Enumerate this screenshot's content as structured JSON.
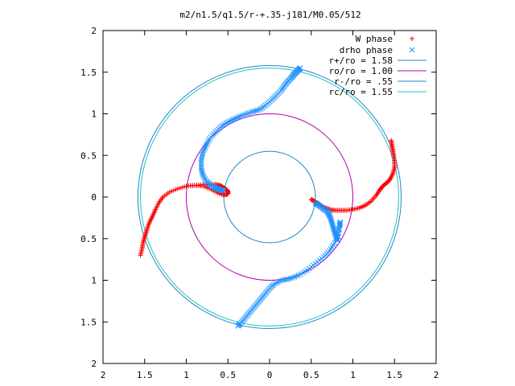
{
  "chart_data": {
    "type": "scatter",
    "title": "m2/n1.5/q1.5/r-+.35-j181/M0.05/512",
    "xlabel": "",
    "ylabel": "",
    "xlim": [
      -2,
      2
    ],
    "ylim": [
      -2,
      2
    ],
    "x_tick_labels": [
      "2",
      "1.5",
      "1",
      "0.5",
      "0",
      "0.5",
      "1",
      "1.5",
      "2"
    ],
    "y_tick_labels": [
      "2",
      "1.5",
      "1",
      "0.5",
      "0",
      "0.5",
      "1",
      "1.5",
      "2"
    ],
    "grid": false,
    "legend_position": "top-right",
    "series": [
      {
        "name": "W phase",
        "kind": "points",
        "marker": "plus",
        "color": "#ff0000",
        "arms": [
          {
            "x": [
              -1.0,
              -0.9,
              -0.8,
              -0.72,
              -0.65,
              -0.6,
              -0.58,
              -0.55,
              -0.52,
              -0.5,
              -0.5,
              -0.52,
              -0.56,
              -0.62,
              -0.7,
              -0.8,
              -0.9,
              -1.0,
              -1.1,
              -1.2,
              -1.28,
              -1.33,
              -1.37,
              -1.4,
              -1.43,
              -1.46,
              -1.48,
              -1.5,
              -1.52,
              -1.53,
              -1.55
            ],
            "y": [
              0.13,
              0.14,
              0.15,
              0.15,
              0.15,
              0.14,
              0.13,
              0.11,
              0.09,
              0.07,
              0.04,
              0.03,
              0.03,
              0.05,
              0.09,
              0.13,
              0.14,
              0.13,
              0.1,
              0.06,
              0.0,
              -0.07,
              -0.15,
              -0.22,
              -0.28,
              -0.35,
              -0.42,
              -0.48,
              -0.55,
              -0.62,
              -0.7
            ]
          },
          {
            "x": [
              0.5,
              0.52,
              0.55,
              0.58,
              0.62,
              0.67,
              0.72,
              0.78,
              0.85,
              0.92,
              1.0,
              1.08,
              1.15,
              1.22,
              1.28,
              1.32,
              1.35,
              1.38,
              1.42,
              1.45,
              1.48,
              1.5,
              1.5,
              1.49,
              1.48,
              1.47,
              1.46
            ],
            "y": [
              -0.03,
              -0.04,
              -0.06,
              -0.08,
              -0.11,
              -0.13,
              -0.15,
              -0.16,
              -0.16,
              -0.16,
              -0.15,
              -0.13,
              -0.1,
              -0.05,
              0.02,
              0.08,
              0.12,
              0.15,
              0.18,
              0.22,
              0.28,
              0.35,
              0.42,
              0.5,
              0.56,
              0.62,
              0.68
            ]
          }
        ]
      },
      {
        "name": "drho phase",
        "kind": "points",
        "marker": "cross",
        "color": "#1e90ff",
        "arms": [
          {
            "x": [
              -0.55,
              -0.57,
              -0.6,
              -0.63,
              -0.67,
              -0.72,
              -0.76,
              -0.8,
              -0.82,
              -0.82,
              -0.8,
              -0.76,
              -0.72,
              -0.65,
              -0.58,
              -0.5,
              -0.42,
              -0.33,
              -0.22,
              -0.12,
              -0.05,
              0.02,
              0.08,
              0.14,
              0.18,
              0.22,
              0.26,
              0.29,
              0.32,
              0.35,
              0.37
            ],
            "y": [
              0.07,
              0.08,
              0.09,
              0.1,
              0.12,
              0.15,
              0.19,
              0.26,
              0.34,
              0.44,
              0.54,
              0.62,
              0.7,
              0.78,
              0.85,
              0.9,
              0.94,
              0.98,
              1.02,
              1.05,
              1.1,
              1.16,
              1.22,
              1.28,
              1.34,
              1.39,
              1.43,
              1.47,
              1.5,
              1.53,
              1.55
            ]
          },
          {
            "x": [
              0.55,
              0.58,
              0.62,
              0.66,
              0.7,
              0.72,
              0.74,
              0.76,
              0.78,
              0.8,
              0.82,
              0.84,
              0.85,
              0.83,
              0.78,
              0.72,
              0.65,
              0.55,
              0.45,
              0.35,
              0.25,
              0.15,
              0.05,
              0.0,
              -0.05,
              -0.1,
              -0.15,
              -0.2,
              -0.25,
              -0.3,
              -0.35,
              -0.38
            ],
            "y": [
              -0.07,
              -0.09,
              -0.12,
              -0.15,
              -0.18,
              -0.22,
              -0.28,
              -0.35,
              -0.42,
              -0.48,
              -0.52,
              -0.35,
              -0.3,
              -0.4,
              -0.55,
              -0.65,
              -0.72,
              -0.8,
              -0.88,
              -0.94,
              -0.98,
              -1.0,
              -1.05,
              -1.1,
              -1.16,
              -1.22,
              -1.28,
              -1.34,
              -1.4,
              -1.46,
              -1.52,
              -1.55
            ]
          }
        ]
      },
      {
        "name": "r+/ro = 1.58",
        "kind": "circle",
        "radius": 1.58,
        "color": "#1e88c8"
      },
      {
        "name": "ro/ro = 1.00",
        "kind": "circle",
        "radius": 1.0,
        "color": "#b000b0"
      },
      {
        "name": "r-/ro = .55",
        "kind": "circle",
        "radius": 0.55,
        "color": "#1e88c8"
      },
      {
        "name": "rc/ro = 1.55",
        "kind": "circle",
        "radius": 1.55,
        "color": "#20c0c0"
      }
    ]
  }
}
